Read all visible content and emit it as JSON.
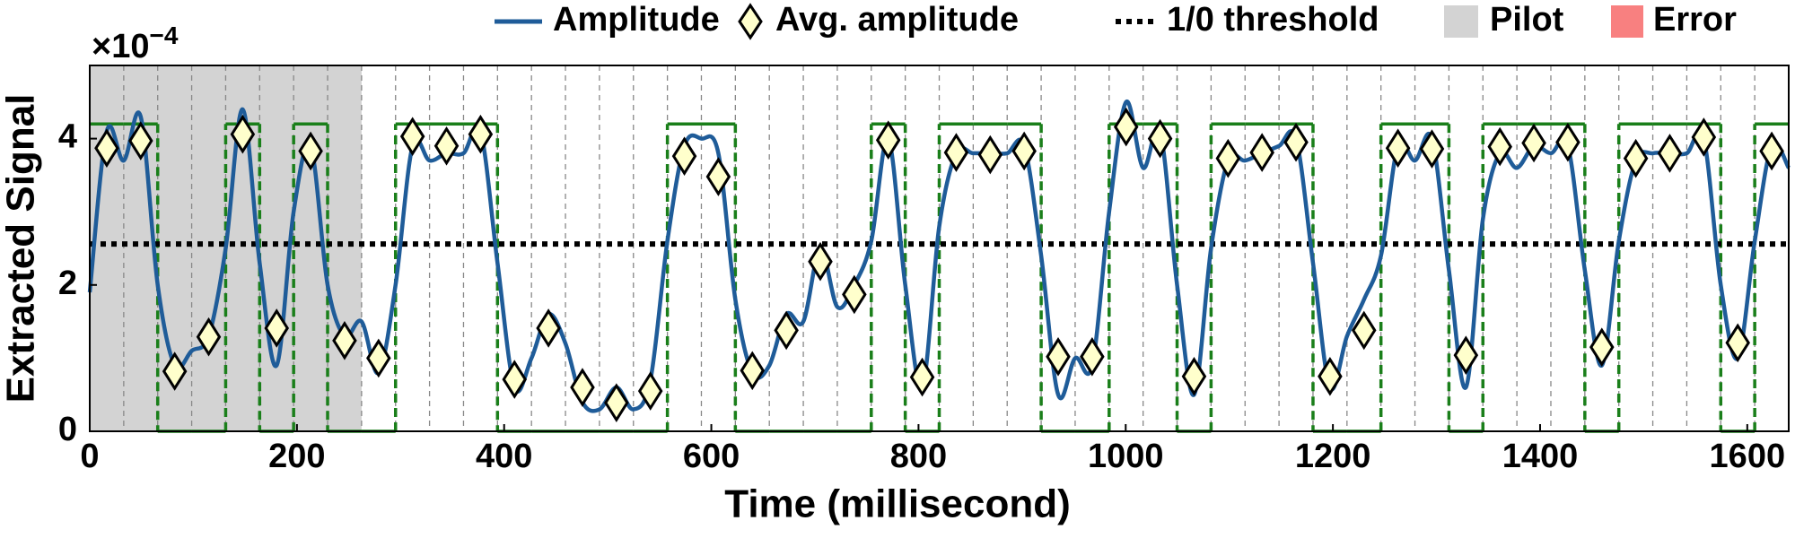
{
  "chart_data": {
    "type": "line",
    "xlabel": "Time (millisecond)",
    "ylabel": "Extracted Signal",
    "multiplier_base": "×10",
    "multiplier_exp": "−4",
    "xlim": [
      0,
      1640
    ],
    "ylim": [
      0,
      5
    ],
    "xticks": [
      0,
      200,
      400,
      600,
      800,
      1000,
      1200,
      1400,
      1600
    ],
    "yticks": [
      0,
      2,
      4
    ],
    "series": [
      {
        "name": "Amplitude",
        "color": "#1f5c99",
        "x": [
          0,
          16.4,
          32.8,
          49.2,
          65.6,
          82,
          98.4,
          114.8,
          131.2,
          147.6,
          164,
          180.4,
          196.8,
          213.2,
          229.6,
          246,
          262.4,
          278.8,
          295.2,
          311.6,
          328,
          344.4,
          360.8,
          377.2,
          393.6,
          410,
          426.4,
          442.8,
          459.2,
          475.6,
          492,
          508.4,
          524.8,
          541.2,
          557.6,
          574,
          590.4,
          606.8,
          623.2,
          639.6,
          656,
          672.4,
          688.8,
          705.2,
          721.6,
          738,
          754.4,
          770.8,
          787.2,
          803.6,
          820,
          836.4,
          852.8,
          869.2,
          885.6,
          902,
          918.4,
          934.8,
          951.2,
          967.6,
          984,
          1000.4,
          1016.8,
          1033.2,
          1049.6,
          1066,
          1082.4,
          1098.8,
          1115.2,
          1131.6,
          1148,
          1164.4,
          1180.8,
          1197.2,
          1213.6,
          1230,
          1246.4,
          1262.8,
          1279.2,
          1295.6,
          1312,
          1328.4,
          1344.8,
          1361.2,
          1377.6,
          1394,
          1410.4,
          1426.8,
          1443.2,
          1459.6,
          1476,
          1492.4,
          1508.8,
          1525.2,
          1541.6,
          1558,
          1574.4,
          1590.8,
          1607.2,
          1623.6,
          1640
        ],
        "values": [
          1.9,
          4.1,
          3.7,
          4.3,
          2.0,
          0.9,
          1.1,
          1.3,
          2.5,
          4.4,
          2.3,
          0.9,
          3.0,
          3.9,
          2.0,
          1.3,
          1.5,
          0.8,
          2.0,
          3.9,
          3.7,
          3.8,
          3.8,
          4.1,
          2.3,
          0.6,
          1.0,
          1.6,
          1.2,
          0.4,
          0.3,
          0.6,
          0.3,
          0.7,
          2.6,
          3.9,
          4.0,
          3.8,
          1.8,
          0.8,
          0.9,
          1.6,
          1.5,
          2.5,
          1.7,
          2.0,
          2.6,
          4.0,
          2.0,
          0.6,
          2.8,
          3.8,
          3.8,
          3.8,
          3.8,
          3.9,
          2.4,
          0.5,
          1.0,
          0.9,
          3.0,
          4.5,
          3.6,
          4.1,
          2.0,
          0.5,
          2.5,
          3.7,
          3.7,
          3.8,
          3.9,
          4.0,
          2.3,
          0.6,
          1.3,
          1.8,
          2.4,
          3.9,
          3.7,
          4.0,
          2.2,
          0.6,
          2.9,
          3.8,
          3.6,
          3.9,
          3.8,
          3.9,
          2.2,
          0.9,
          2.6,
          3.7,
          3.8,
          3.8,
          3.8,
          4.0,
          2.0,
          1.0,
          2.6,
          3.9,
          3.6
        ]
      },
      {
        "name": "Avg. amplitude",
        "color": "#ffffcc",
        "x": [
          16.4,
          49.2,
          82,
          114.8,
          147.6,
          180.4,
          213.2,
          246,
          278.8,
          311.6,
          344.4,
          377.2,
          410,
          442.8,
          475.6,
          508.4,
          541.2,
          574,
          606.8,
          639.6,
          672.4,
          705.2,
          738,
          770.8,
          803.6,
          836.4,
          869.2,
          902,
          934.8,
          967.6,
          1000.4,
          1033.2,
          1066,
          1098.8,
          1131.6,
          1164.4,
          1197.2,
          1230,
          1262.8,
          1295.6,
          1328.4,
          1361.2,
          1394,
          1426.8,
          1459.6,
          1492.4,
          1525.2,
          1558,
          1590.8,
          1623.6
        ],
        "values": [
          3.87,
          3.97,
          0.82,
          1.29,
          4.06,
          1.41,
          3.83,
          1.24,
          1.0,
          4.03,
          3.9,
          4.06,
          0.71,
          1.41,
          0.6,
          0.39,
          0.55,
          3.76,
          3.48,
          0.83,
          1.38,
          2.32,
          1.87,
          3.98,
          0.74,
          3.81,
          3.78,
          3.83,
          1.02,
          1.02,
          4.16,
          4.0,
          0.75,
          3.73,
          3.81,
          3.95,
          0.75,
          1.38,
          3.87,
          3.86,
          1.04,
          3.89,
          3.94,
          3.95,
          1.15,
          3.73,
          3.8,
          4.02,
          1.21,
          3.83
        ]
      }
    ],
    "threshold": {
      "name": "1/0 threshold",
      "value": 2.56,
      "color": "#000000"
    },
    "pilot": {
      "name": "Pilot",
      "color": "#d3d3d3",
      "xrange": [
        0,
        262.4
      ]
    },
    "error": {
      "name": "Error",
      "color": "#f88080"
    },
    "decoded_bits": {
      "color": "#1a7f1a",
      "edges": [
        0,
        32.8,
        65.6,
        98.4,
        131.2,
        164,
        196.8,
        229.6,
        262.4,
        295.2,
        328,
        360.8,
        393.6,
        426.4,
        459.2,
        492,
        524.8,
        557.6,
        590.4,
        623.2,
        656,
        688.8,
        721.6,
        754.4,
        787.2,
        820,
        852.8,
        885.6,
        918.4,
        951.2,
        984,
        1016.8,
        1049.6,
        1082.4,
        1115.2,
        1148,
        1180.8,
        1213.6,
        1246.4,
        1279.2,
        1312,
        1344.8,
        1377.6,
        1410.4,
        1443.2,
        1476,
        1508.8,
        1541.6,
        1574.4,
        1607.2,
        1640
      ],
      "values": [
        4.2,
        4.2,
        0,
        0,
        4.2,
        0,
        4.2,
        0,
        0,
        4.2,
        4.2,
        4.2,
        0,
        0,
        0,
        0,
        0,
        4.2,
        4.2,
        0,
        0,
        0,
        0,
        4.2,
        0,
        4.2,
        4.2,
        4.2,
        0,
        0,
        4.2,
        4.2,
        0,
        4.2,
        4.2,
        4.2,
        0,
        0,
        4.2,
        4.2,
        0,
        4.2,
        4.2,
        4.2,
        0,
        4.2,
        4.2,
        4.2,
        0,
        4.2
      ]
    }
  }
}
